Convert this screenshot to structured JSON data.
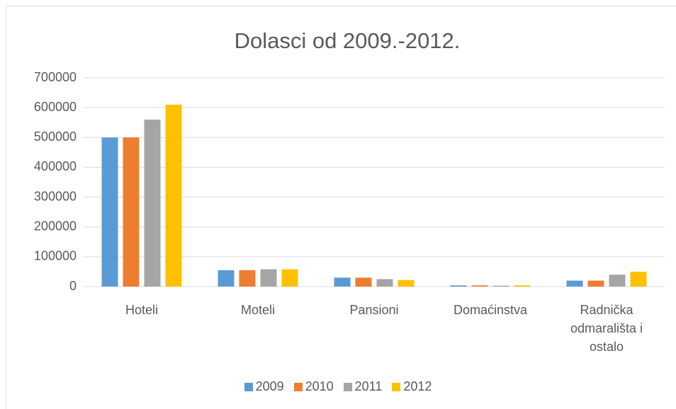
{
  "chart_data": {
    "type": "bar",
    "title": "Dolasci od 2009.-2012.",
    "categories": [
      "Hoteli",
      "Moteli",
      "Pansioni",
      "Domaćinstva",
      "Radnička odmarališta i ostalo"
    ],
    "series": [
      {
        "name": "2009",
        "color": "#5b9bd5",
        "values": [
          500000,
          55000,
          30000,
          4000,
          20000
        ]
      },
      {
        "name": "2010",
        "color": "#ed7d31",
        "values": [
          500000,
          55000,
          30000,
          4000,
          20000
        ]
      },
      {
        "name": "2011",
        "color": "#a5a5a5",
        "values": [
          560000,
          58000,
          25000,
          3000,
          40000
        ]
      },
      {
        "name": "2012",
        "color": "#ffc000",
        "values": [
          610000,
          58000,
          22000,
          4000,
          50000
        ]
      }
    ],
    "ylim": [
      0,
      700000
    ],
    "yticks": [
      0,
      100000,
      200000,
      300000,
      400000,
      500000,
      600000,
      700000
    ],
    "grid": true,
    "legend": "bottom"
  }
}
